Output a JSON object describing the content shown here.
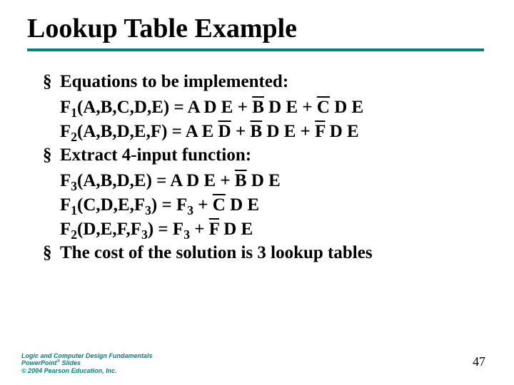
{
  "title": "Lookup Table Example",
  "colors": {
    "accent": "#008080",
    "text": "#000000",
    "background": "#ffffff"
  },
  "typography": {
    "title_fontsize_pt": 38,
    "body_fontsize_pt": 25,
    "font_family": "Times New Roman",
    "body_weight": "bold"
  },
  "bullets": [
    {
      "lead": "Equations to be implemented:",
      "lines": [
        {
          "fn": "F",
          "sub": "1",
          "args": "(A,B,C,D,E)",
          "eq": " =  A D E + ",
          "terms": [
            {
              "t": "B",
              "ov": true
            },
            {
              "t": " D E + "
            },
            {
              "t": "C",
              "ov": true
            },
            {
              "t": " D E"
            }
          ]
        },
        {
          "fn": "F",
          "sub": "2",
          "args": "(A,B,D,E,F)",
          "eq": " =  A E ",
          "terms": [
            {
              "t": "D",
              "ov": true
            },
            {
              "t": " + "
            },
            {
              "t": "B",
              "ov": true
            },
            {
              "t": " D E + "
            },
            {
              "t": "F",
              "ov": true
            },
            {
              "t": " D E"
            }
          ]
        }
      ]
    },
    {
      "lead": "Extract 4-input function:",
      "lines": [
        {
          "fn": "F",
          "sub": "3",
          "args": "(A,B,D,E)",
          "eq": "  =  A D E + ",
          "terms": [
            {
              "t": "B",
              "ov": true
            },
            {
              "t": " D E"
            }
          ]
        },
        {
          "fn": "F",
          "sub": "1",
          "args_rich": [
            {
              "t": "(C,D,E,F"
            },
            {
              "t": "3",
              "sub": true
            },
            {
              "t": ")"
            }
          ],
          "eq": " =  F",
          "eq_sub": "3",
          "terms": [
            {
              "t": " + "
            },
            {
              "t": "C",
              "ov": true
            },
            {
              "t": " D E"
            }
          ]
        },
        {
          "fn": "F",
          "sub": "2",
          "args_rich": [
            {
              "t": "(D,E,F,F"
            },
            {
              "t": "3",
              "sub": true
            },
            {
              "t": ")"
            }
          ],
          "eq": " =  F",
          "eq_sub": "3",
          "terms": [
            {
              "t": " + "
            },
            {
              "t": "F",
              "ov": true
            },
            {
              "t": " D E"
            }
          ]
        }
      ]
    },
    {
      "lead": "The cost of the solution is 3 lookup tables",
      "lines": []
    }
  ],
  "footer": {
    "line1": "Logic and Computer Design Fundamentals",
    "line2a": "PowerPoint",
    "line2b_sup": "®",
    "line2c": " Slides",
    "line3": "© 2004 Pearson Education, Inc."
  },
  "page_number": "47"
}
